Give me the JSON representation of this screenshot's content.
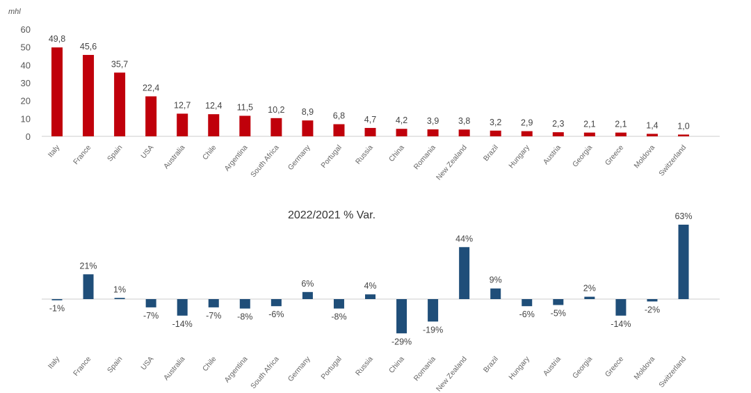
{
  "chart_data": [
    {
      "type": "bar",
      "ylabel": "mhl",
      "ylim": [
        0,
        60
      ],
      "yticks": [
        0,
        10,
        20,
        30,
        40,
        50,
        60
      ],
      "grid": false,
      "color": "#c0000b",
      "categories": [
        "Italy",
        "France",
        "Spain",
        "USA",
        "Australia",
        "Chile",
        "Argentina",
        "South Africa",
        "Germany",
        "Portugal",
        "Russia",
        "China",
        "Romania",
        "New Zealand",
        "Brazil",
        "Hungary",
        "Austria",
        "Georgia",
        "Greece",
        "Moldova",
        "Switzerland"
      ],
      "values": [
        49.8,
        45.6,
        35.7,
        22.4,
        12.7,
        12.4,
        11.5,
        10.2,
        8.9,
        6.8,
        4.7,
        4.2,
        3.9,
        3.8,
        3.2,
        2.9,
        2.3,
        2.1,
        2.1,
        1.4,
        1.0
      ],
      "data_labels": [
        "49,8",
        "45,6",
        "35,7",
        "22,4",
        "12,7",
        "12,4",
        "11,5",
        "10,2",
        "8,9",
        "6,8",
        "4,7",
        "4,2",
        "3,9",
        "3,8",
        "3,2",
        "2,9",
        "2,3",
        "2,1",
        "2,1",
        "1,4",
        "1,0"
      ]
    },
    {
      "type": "bar",
      "title": "2022/2021 % Var.",
      "grid": false,
      "color": "#1f4e79",
      "categories": [
        "Italy",
        "France",
        "Spain",
        "USA",
        "Australia",
        "Chile",
        "Argentina",
        "South Africa",
        "Germany",
        "Portugal",
        "Russia",
        "China",
        "Romania",
        "New Zealand",
        "Brazil",
        "Hungary",
        "Austria",
        "Georgia",
        "Greece",
        "Moldova",
        "Switzerland"
      ],
      "values": [
        -1,
        21,
        1,
        -7,
        -14,
        -7,
        -8,
        -6,
        6,
        -8,
        4,
        -29,
        -19,
        44,
        9,
        -6,
        -5,
        2,
        -14,
        -2,
        63
      ],
      "data_labels": [
        "-1%",
        "21%",
        "1%",
        "-7%",
        "-14%",
        "-7%",
        "-8%",
        "-6%",
        "6%",
        "-8%",
        "4%",
        "-29%",
        "-19%",
        "44%",
        "9%",
        "-6%",
        "-5%",
        "2%",
        "-14%",
        "-2%",
        "63%"
      ]
    }
  ]
}
